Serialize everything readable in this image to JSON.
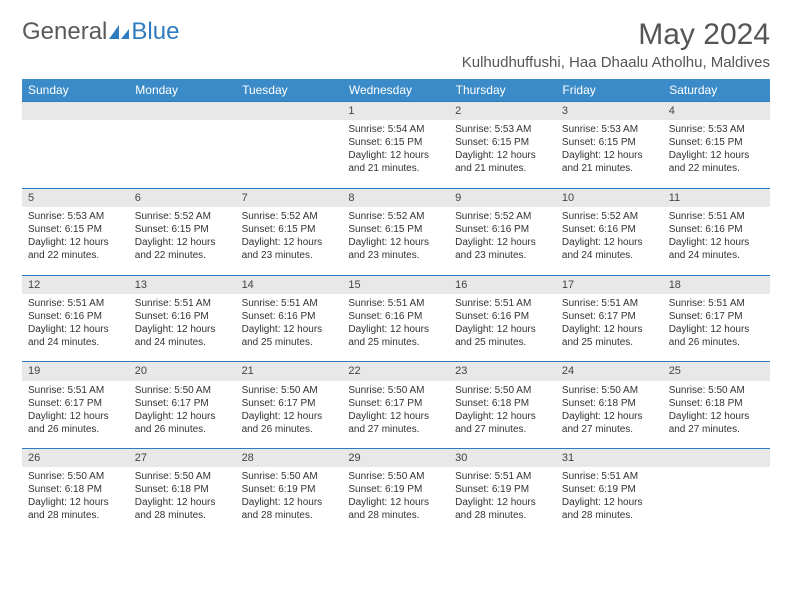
{
  "brand": {
    "part1": "General",
    "part2": "Blue"
  },
  "title": "May 2024",
  "location": "Kulhudhuffushi, Haa Dhaalu Atholhu, Maldives",
  "colors": {
    "header_bg": "#3b8bc8",
    "header_text": "#ffffff",
    "daynum_bg": "#e8e8e8",
    "border": "#2f7bbf",
    "text": "#333333",
    "title_text": "#555555",
    "logo_gray": "#5a5a5a",
    "logo_blue": "#2f7bbf"
  },
  "typography": {
    "title_fontsize": 30,
    "location_fontsize": 15,
    "header_fontsize": 12,
    "daynum_fontsize": 11,
    "cell_fontsize": 10
  },
  "weekdays": [
    "Sunday",
    "Monday",
    "Tuesday",
    "Wednesday",
    "Thursday",
    "Friday",
    "Saturday"
  ],
  "weeks": [
    {
      "nums": [
        "",
        "",
        "",
        "1",
        "2",
        "3",
        "4"
      ],
      "info": [
        null,
        null,
        null,
        {
          "sunrise": "Sunrise: 5:54 AM",
          "sunset": "Sunset: 6:15 PM",
          "daylight1": "Daylight: 12 hours",
          "daylight2": "and 21 minutes."
        },
        {
          "sunrise": "Sunrise: 5:53 AM",
          "sunset": "Sunset: 6:15 PM",
          "daylight1": "Daylight: 12 hours",
          "daylight2": "and 21 minutes."
        },
        {
          "sunrise": "Sunrise: 5:53 AM",
          "sunset": "Sunset: 6:15 PM",
          "daylight1": "Daylight: 12 hours",
          "daylight2": "and 21 minutes."
        },
        {
          "sunrise": "Sunrise: 5:53 AM",
          "sunset": "Sunset: 6:15 PM",
          "daylight1": "Daylight: 12 hours",
          "daylight2": "and 22 minutes."
        }
      ]
    },
    {
      "nums": [
        "5",
        "6",
        "7",
        "8",
        "9",
        "10",
        "11"
      ],
      "info": [
        {
          "sunrise": "Sunrise: 5:53 AM",
          "sunset": "Sunset: 6:15 PM",
          "daylight1": "Daylight: 12 hours",
          "daylight2": "and 22 minutes."
        },
        {
          "sunrise": "Sunrise: 5:52 AM",
          "sunset": "Sunset: 6:15 PM",
          "daylight1": "Daylight: 12 hours",
          "daylight2": "and 22 minutes."
        },
        {
          "sunrise": "Sunrise: 5:52 AM",
          "sunset": "Sunset: 6:15 PM",
          "daylight1": "Daylight: 12 hours",
          "daylight2": "and 23 minutes."
        },
        {
          "sunrise": "Sunrise: 5:52 AM",
          "sunset": "Sunset: 6:15 PM",
          "daylight1": "Daylight: 12 hours",
          "daylight2": "and 23 minutes."
        },
        {
          "sunrise": "Sunrise: 5:52 AM",
          "sunset": "Sunset: 6:16 PM",
          "daylight1": "Daylight: 12 hours",
          "daylight2": "and 23 minutes."
        },
        {
          "sunrise": "Sunrise: 5:52 AM",
          "sunset": "Sunset: 6:16 PM",
          "daylight1": "Daylight: 12 hours",
          "daylight2": "and 24 minutes."
        },
        {
          "sunrise": "Sunrise: 5:51 AM",
          "sunset": "Sunset: 6:16 PM",
          "daylight1": "Daylight: 12 hours",
          "daylight2": "and 24 minutes."
        }
      ]
    },
    {
      "nums": [
        "12",
        "13",
        "14",
        "15",
        "16",
        "17",
        "18"
      ],
      "info": [
        {
          "sunrise": "Sunrise: 5:51 AM",
          "sunset": "Sunset: 6:16 PM",
          "daylight1": "Daylight: 12 hours",
          "daylight2": "and 24 minutes."
        },
        {
          "sunrise": "Sunrise: 5:51 AM",
          "sunset": "Sunset: 6:16 PM",
          "daylight1": "Daylight: 12 hours",
          "daylight2": "and 24 minutes."
        },
        {
          "sunrise": "Sunrise: 5:51 AM",
          "sunset": "Sunset: 6:16 PM",
          "daylight1": "Daylight: 12 hours",
          "daylight2": "and 25 minutes."
        },
        {
          "sunrise": "Sunrise: 5:51 AM",
          "sunset": "Sunset: 6:16 PM",
          "daylight1": "Daylight: 12 hours",
          "daylight2": "and 25 minutes."
        },
        {
          "sunrise": "Sunrise: 5:51 AM",
          "sunset": "Sunset: 6:16 PM",
          "daylight1": "Daylight: 12 hours",
          "daylight2": "and 25 minutes."
        },
        {
          "sunrise": "Sunrise: 5:51 AM",
          "sunset": "Sunset: 6:17 PM",
          "daylight1": "Daylight: 12 hours",
          "daylight2": "and 25 minutes."
        },
        {
          "sunrise": "Sunrise: 5:51 AM",
          "sunset": "Sunset: 6:17 PM",
          "daylight1": "Daylight: 12 hours",
          "daylight2": "and 26 minutes."
        }
      ]
    },
    {
      "nums": [
        "19",
        "20",
        "21",
        "22",
        "23",
        "24",
        "25"
      ],
      "info": [
        {
          "sunrise": "Sunrise: 5:51 AM",
          "sunset": "Sunset: 6:17 PM",
          "daylight1": "Daylight: 12 hours",
          "daylight2": "and 26 minutes."
        },
        {
          "sunrise": "Sunrise: 5:50 AM",
          "sunset": "Sunset: 6:17 PM",
          "daylight1": "Daylight: 12 hours",
          "daylight2": "and 26 minutes."
        },
        {
          "sunrise": "Sunrise: 5:50 AM",
          "sunset": "Sunset: 6:17 PM",
          "daylight1": "Daylight: 12 hours",
          "daylight2": "and 26 minutes."
        },
        {
          "sunrise": "Sunrise: 5:50 AM",
          "sunset": "Sunset: 6:17 PM",
          "daylight1": "Daylight: 12 hours",
          "daylight2": "and 27 minutes."
        },
        {
          "sunrise": "Sunrise: 5:50 AM",
          "sunset": "Sunset: 6:18 PM",
          "daylight1": "Daylight: 12 hours",
          "daylight2": "and 27 minutes."
        },
        {
          "sunrise": "Sunrise: 5:50 AM",
          "sunset": "Sunset: 6:18 PM",
          "daylight1": "Daylight: 12 hours",
          "daylight2": "and 27 minutes."
        },
        {
          "sunrise": "Sunrise: 5:50 AM",
          "sunset": "Sunset: 6:18 PM",
          "daylight1": "Daylight: 12 hours",
          "daylight2": "and 27 minutes."
        }
      ]
    },
    {
      "nums": [
        "26",
        "27",
        "28",
        "29",
        "30",
        "31",
        ""
      ],
      "info": [
        {
          "sunrise": "Sunrise: 5:50 AM",
          "sunset": "Sunset: 6:18 PM",
          "daylight1": "Daylight: 12 hours",
          "daylight2": "and 28 minutes."
        },
        {
          "sunrise": "Sunrise: 5:50 AM",
          "sunset": "Sunset: 6:18 PM",
          "daylight1": "Daylight: 12 hours",
          "daylight2": "and 28 minutes."
        },
        {
          "sunrise": "Sunrise: 5:50 AM",
          "sunset": "Sunset: 6:19 PM",
          "daylight1": "Daylight: 12 hours",
          "daylight2": "and 28 minutes."
        },
        {
          "sunrise": "Sunrise: 5:50 AM",
          "sunset": "Sunset: 6:19 PM",
          "daylight1": "Daylight: 12 hours",
          "daylight2": "and 28 minutes."
        },
        {
          "sunrise": "Sunrise: 5:51 AM",
          "sunset": "Sunset: 6:19 PM",
          "daylight1": "Daylight: 12 hours",
          "daylight2": "and 28 minutes."
        },
        {
          "sunrise": "Sunrise: 5:51 AM",
          "sunset": "Sunset: 6:19 PM",
          "daylight1": "Daylight: 12 hours",
          "daylight2": "and 28 minutes."
        },
        null
      ]
    }
  ]
}
